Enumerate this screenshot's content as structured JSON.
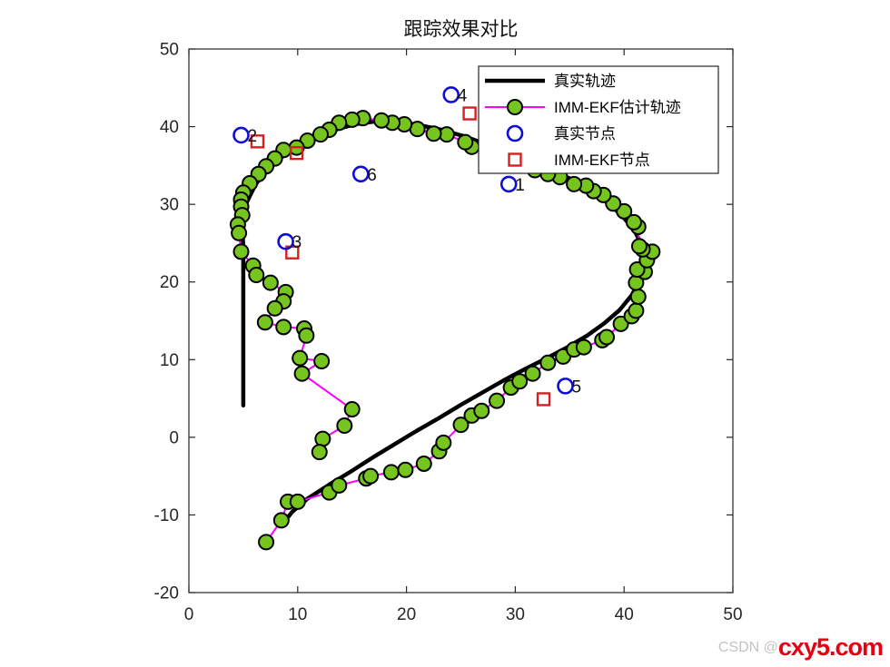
{
  "title": "跟踪效果对比",
  "watermark": {
    "prefix": "CSDN @",
    "brand": "cxy5.com"
  },
  "colors": {
    "axis": "#262626",
    "true_line": "#000000",
    "ekf_line": "#ff00ff",
    "ekf_marker_fill": "#76c51e",
    "ekf_marker_edge": "#000000",
    "true_node": "#0d0dd6",
    "ekf_node": "#d42020",
    "label": "#111111"
  },
  "legend": {
    "items": [
      {
        "key": "true-trajectory",
        "marker": "thick-black-line",
        "label": "真实轨迹"
      },
      {
        "key": "ekf-trajectory",
        "marker": "magenta-line-green-dot",
        "label": "IMM-EKF估计轨迹"
      },
      {
        "key": "true-nodes",
        "marker": "open-blue-circle",
        "label": "真实节点"
      },
      {
        "key": "ekf-nodes",
        "marker": "open-red-square",
        "label": "IMM-EKF节点"
      }
    ]
  },
  "chart_data": {
    "type": "line",
    "title": "跟踪效果对比",
    "xlabel": "",
    "ylabel": "",
    "xlim": [
      0,
      50
    ],
    "ylim": [
      -20,
      50
    ],
    "xticks": [
      0,
      10,
      20,
      30,
      40,
      50
    ],
    "yticks": [
      -20,
      -10,
      0,
      10,
      20,
      30,
      40,
      50
    ],
    "grid": false,
    "legend_position": "upper-right-inside",
    "series": [
      {
        "name": "真实轨迹",
        "type": "line",
        "color": "#000000",
        "points": [
          [
            5.0,
            4.1
          ],
          [
            5.0,
            24.3
          ],
          [
            4.9,
            27.5
          ],
          [
            5.3,
            30.2
          ],
          [
            6.1,
            32.5
          ],
          [
            7.3,
            34.7
          ],
          [
            9.0,
            36.6
          ],
          [
            11.0,
            38.2
          ],
          [
            13.2,
            39.5
          ],
          [
            15.2,
            40.3
          ],
          [
            17.2,
            40.7
          ],
          [
            19.2,
            40.6
          ],
          [
            21.2,
            40.2
          ],
          [
            23.2,
            39.6
          ],
          [
            25.2,
            38.8
          ],
          [
            27.2,
            37.8
          ],
          [
            29.2,
            36.8
          ],
          [
            31.2,
            35.7
          ],
          [
            33.2,
            34.5
          ],
          [
            35.2,
            33.2
          ],
          [
            36.9,
            31.8
          ],
          [
            38.5,
            30.2
          ],
          [
            39.9,
            28.4
          ],
          [
            41.0,
            26.5
          ],
          [
            41.7,
            24.5
          ],
          [
            41.9,
            22.5
          ],
          [
            41.5,
            20.4
          ],
          [
            40.7,
            18.3
          ],
          [
            39.6,
            16.4
          ],
          [
            38.2,
            14.7
          ],
          [
            36.6,
            13.1
          ],
          [
            34.8,
            11.6
          ],
          [
            32.9,
            10.2
          ],
          [
            30.9,
            8.8
          ],
          [
            28.9,
            7.3
          ],
          [
            26.9,
            5.7
          ],
          [
            24.9,
            4.1
          ],
          [
            22.9,
            2.4
          ],
          [
            20.9,
            0.8
          ],
          [
            18.9,
            -0.9
          ],
          [
            16.9,
            -2.6
          ],
          [
            14.9,
            -4.4
          ],
          [
            12.9,
            -6.1
          ],
          [
            10.9,
            -7.9
          ],
          [
            9.5,
            -9.6
          ],
          [
            8.7,
            -11.0
          ]
        ]
      },
      {
        "name": "IMM-EKF估计轨迹",
        "type": "line-marker",
        "line_color": "#ff00ff",
        "marker": "filled-circle",
        "marker_fill": "#76c51e",
        "marker_edge": "#000000",
        "points": [
          [
            7.1,
            -13.5
          ],
          [
            8.5,
            -10.7
          ],
          [
            9.1,
            -8.3
          ],
          [
            10.0,
            -8.3
          ],
          [
            12.9,
            -7.1
          ],
          [
            13.8,
            -6.2
          ],
          [
            16.3,
            -5.3
          ],
          [
            16.7,
            -5.0
          ],
          [
            18.6,
            -4.5
          ],
          [
            19.9,
            -4.2
          ],
          [
            21.6,
            -3.4
          ],
          [
            23.0,
            -1.8
          ],
          [
            23.4,
            -0.7
          ],
          [
            25.0,
            1.6
          ],
          [
            26.0,
            2.8
          ],
          [
            26.9,
            3.4
          ],
          [
            28.3,
            4.7
          ],
          [
            29.6,
            6.4
          ],
          [
            30.4,
            7.2
          ],
          [
            31.6,
            8.2
          ],
          [
            33.0,
            9.6
          ],
          [
            34.4,
            10.4
          ],
          [
            35.4,
            11.3
          ],
          [
            36.3,
            11.6
          ],
          [
            38.0,
            12.5
          ],
          [
            38.4,
            12.9
          ],
          [
            39.7,
            14.6
          ],
          [
            40.7,
            15.6
          ],
          [
            41.1,
            16.3
          ],
          [
            41.3,
            18.1
          ],
          [
            41.1,
            19.9
          ],
          [
            41.9,
            21.3
          ],
          [
            41.2,
            21.6
          ],
          [
            42.1,
            22.8
          ],
          [
            42.6,
            23.9
          ],
          [
            41.7,
            24.2
          ],
          [
            41.4,
            24.6
          ],
          [
            41.3,
            27.1
          ],
          [
            40.9,
            27.7
          ],
          [
            40.0,
            29.1
          ],
          [
            39.0,
            30.1
          ],
          [
            38.1,
            31.2
          ],
          [
            37.2,
            31.7
          ],
          [
            36.5,
            32.4
          ],
          [
            35.4,
            32.6
          ],
          [
            34.1,
            33.5
          ],
          [
            33.0,
            33.9
          ],
          [
            31.8,
            34.4
          ],
          [
            30.4,
            35.2
          ],
          [
            29.0,
            35.9
          ],
          [
            27.6,
            36.7
          ],
          [
            26.0,
            37.4
          ],
          [
            25.4,
            38.0
          ],
          [
            23.7,
            39.0
          ],
          [
            22.5,
            39.1
          ],
          [
            21.0,
            39.7
          ],
          [
            19.8,
            40.3
          ],
          [
            18.7,
            40.5
          ],
          [
            17.7,
            40.8
          ],
          [
            16.0,
            41.1
          ],
          [
            15.0,
            40.9
          ],
          [
            13.8,
            40.5
          ],
          [
            12.9,
            39.6
          ],
          [
            12.1,
            39.0
          ],
          [
            10.9,
            38.2
          ],
          [
            9.9,
            37.3
          ],
          [
            8.7,
            37.0
          ],
          [
            7.9,
            35.9
          ],
          [
            7.1,
            34.9
          ],
          [
            6.4,
            33.9
          ],
          [
            5.6,
            32.7
          ],
          [
            5.0,
            31.5
          ],
          [
            4.8,
            30.6
          ],
          [
            4.8,
            29.7
          ],
          [
            4.9,
            28.6
          ],
          [
            4.5,
            27.4
          ],
          [
            4.6,
            26.3
          ],
          [
            4.8,
            23.9
          ],
          [
            5.9,
            22.1
          ],
          [
            6.2,
            20.9
          ],
          [
            7.5,
            19.9
          ],
          [
            8.9,
            18.7
          ],
          [
            8.7,
            17.5
          ],
          [
            7.9,
            16.6
          ],
          [
            7.0,
            14.8
          ],
          [
            8.7,
            14.2
          ],
          [
            10.6,
            14.0
          ],
          [
            10.8,
            13.1
          ],
          [
            10.2,
            10.2
          ],
          [
            12.2,
            9.8
          ],
          [
            10.4,
            8.2
          ],
          [
            15.0,
            3.6
          ],
          [
            14.3,
            1.5
          ],
          [
            12.3,
            -0.2
          ],
          [
            12.0,
            -1.9
          ]
        ]
      },
      {
        "name": "真实节点",
        "type": "scatter",
        "marker": "open-circle",
        "color": "#0d0dd6",
        "points": [
          {
            "label": "1",
            "x": 29.4,
            "y": 32.6
          },
          {
            "label": "2",
            "x": 4.8,
            "y": 38.9
          },
          {
            "label": "3",
            "x": 8.9,
            "y": 25.2
          },
          {
            "label": "4",
            "x": 24.1,
            "y": 44.1
          },
          {
            "label": "5",
            "x": 34.6,
            "y": 6.6
          },
          {
            "label": "6",
            "x": 15.8,
            "y": 33.9
          }
        ]
      },
      {
        "name": "IMM-EKF节点",
        "type": "scatter",
        "marker": "open-square",
        "color": "#d42020",
        "points": [
          [
            6.3,
            38.1
          ],
          [
            9.9,
            36.6
          ],
          [
            25.8,
            41.7
          ],
          [
            9.5,
            23.8
          ],
          [
            32.6,
            4.9
          ]
        ]
      }
    ]
  }
}
